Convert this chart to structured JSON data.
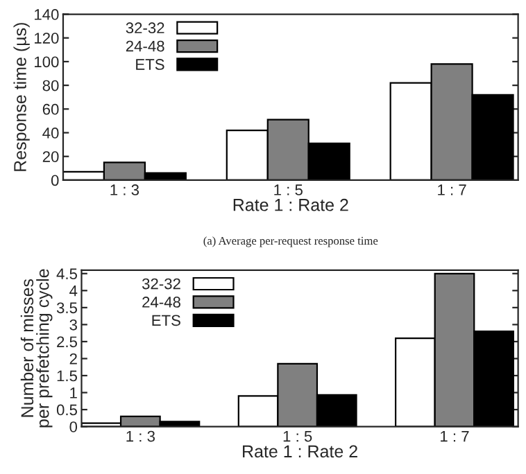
{
  "chart_data": [
    {
      "type": "bar",
      "ylabel": "Response time (µs)",
      "xlabel": "Rate 1 : Rate 2",
      "categories": [
        "1 : 3",
        "1 : 5",
        "1 : 7"
      ],
      "series": [
        {
          "name": "32-32",
          "color": "#ffffff",
          "values": [
            7,
            42,
            82
          ]
        },
        {
          "name": "24-48",
          "color": "#808080",
          "values": [
            15,
            51,
            98
          ]
        },
        {
          "name": "ETS",
          "color": "#000000",
          "values": [
            6,
            31,
            72
          ]
        }
      ],
      "ylim": [
        0,
        140
      ],
      "yticks": [
        0,
        20,
        40,
        60,
        80,
        100,
        120,
        140
      ],
      "legend": "top left",
      "grid": false,
      "annotations": [
        "(a) Average per-request response time"
      ]
    },
    {
      "type": "bar",
      "ylabel": "Number of misses\nper prefetching cycle",
      "xlabel": "Rate 1 : Rate 2",
      "categories": [
        "1 : 3",
        "1 : 5",
        "1 : 7"
      ],
      "series": [
        {
          "name": "32-32",
          "color": "#ffffff",
          "values": [
            0.1,
            0.9,
            2.6
          ]
        },
        {
          "name": "24-48",
          "color": "#808080",
          "values": [
            0.3,
            1.85,
            4.5
          ]
        },
        {
          "name": "ETS",
          "color": "#000000",
          "values": [
            0.15,
            0.93,
            2.8
          ]
        }
      ],
      "ylim": [
        0,
        4.6
      ],
      "yticks": [
        0,
        0.5,
        1,
        1.5,
        2,
        2.5,
        3,
        3.5,
        4,
        4.5
      ],
      "legend": "top left",
      "grid": false
    }
  ]
}
